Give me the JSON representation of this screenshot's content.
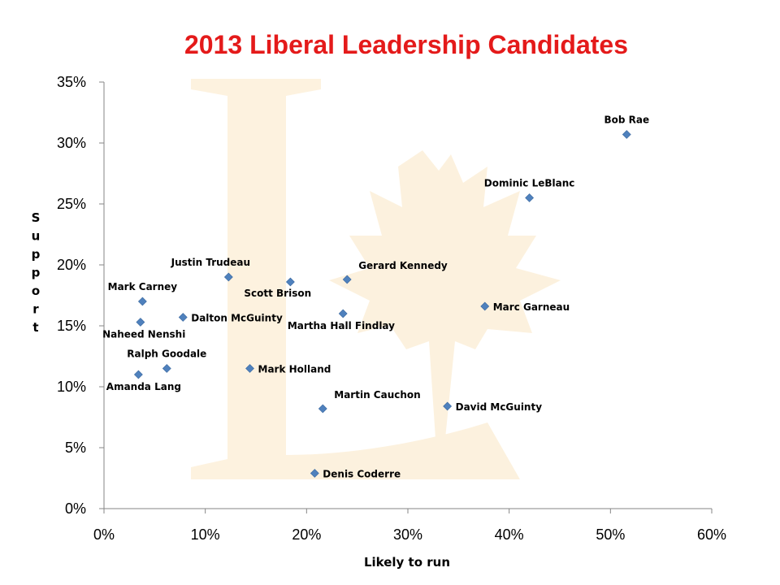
{
  "chart_data": {
    "type": "scatter",
    "title": "2013 Liberal Leadership Candidates",
    "xlabel": "Likely to run",
    "ylabel": "Support",
    "xlim": [
      0,
      0.6
    ],
    "ylim": [
      0,
      0.35
    ],
    "x_ticks": [
      0,
      0.1,
      0.2,
      0.3,
      0.4,
      0.5,
      0.6
    ],
    "x_tick_labels": [
      "0%",
      "10%",
      "20%",
      "30%",
      "40%",
      "50%",
      "60%"
    ],
    "y_ticks": [
      0,
      0.05,
      0.1,
      0.15,
      0.2,
      0.25,
      0.3,
      0.35
    ],
    "y_tick_labels": [
      "0%",
      "5%",
      "10%",
      "15%",
      "20%",
      "25%",
      "30%",
      "35%"
    ],
    "grid": false,
    "legend": "none",
    "colors": {
      "title": "#e41a1a",
      "marker": "#4f81bd",
      "watermark": "#fbe7c4"
    },
    "points": [
      {
        "name": "Bob Rae",
        "x": 0.516,
        "y": 0.307,
        "label_pos": "above"
      },
      {
        "name": "Dominic LeBlanc",
        "x": 0.42,
        "y": 0.255,
        "label_pos": "above"
      },
      {
        "name": "Justin Trudeau",
        "x": 0.123,
        "y": 0.19,
        "label_pos": "above-left"
      },
      {
        "name": "Gerard Kennedy",
        "x": 0.24,
        "y": 0.188,
        "label_pos": "above-right"
      },
      {
        "name": "Scott Brison",
        "x": 0.184,
        "y": 0.186,
        "label_pos": "below-left"
      },
      {
        "name": "Mark Carney",
        "x": 0.038,
        "y": 0.17,
        "label_pos": "above"
      },
      {
        "name": "Marc Garneau",
        "x": 0.376,
        "y": 0.166,
        "label_pos": "right"
      },
      {
        "name": "Martha Hall Findlay",
        "x": 0.236,
        "y": 0.16,
        "label_pos": "below"
      },
      {
        "name": "Dalton McGuinty",
        "x": 0.078,
        "y": 0.157,
        "label_pos": "right"
      },
      {
        "name": "Naheed Nenshi",
        "x": 0.036,
        "y": 0.153,
        "label_pos": "below"
      },
      {
        "name": "Ralph Goodale",
        "x": 0.062,
        "y": 0.115,
        "label_pos": "above"
      },
      {
        "name": "Mark Holland",
        "x": 0.144,
        "y": 0.115,
        "label_pos": "right"
      },
      {
        "name": "Amanda Lang",
        "x": 0.034,
        "y": 0.11,
        "label_pos": "below"
      },
      {
        "name": "Martin Cauchon",
        "x": 0.216,
        "y": 0.082,
        "label_pos": "above-right"
      },
      {
        "name": "David McGuinty",
        "x": 0.339,
        "y": 0.084,
        "label_pos": "right"
      },
      {
        "name": "Denis Coderre",
        "x": 0.208,
        "y": 0.029,
        "label_pos": "right"
      }
    ]
  }
}
